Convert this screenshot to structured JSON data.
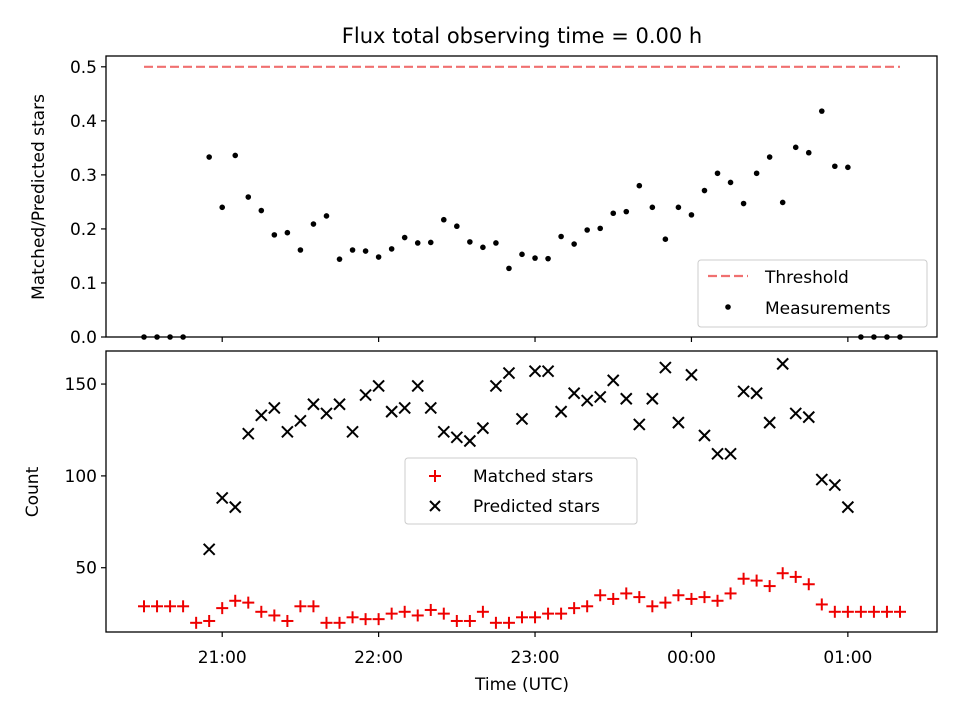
{
  "chart_data": [
    {
      "type": "scatter",
      "title": "Flux total observing time = 0.00 h",
      "xlabel": "",
      "ylabel": "Matched/Predicted stars",
      "ylim": [
        0,
        0.52
      ],
      "yticks": [
        "0.0",
        "0.1",
        "0.2",
        "0.3",
        "0.4",
        "0.5"
      ],
      "legend_position": "bottom-right",
      "threshold": {
        "name": "Threshold",
        "value": 0.5,
        "color": "#f07070",
        "x_range": [
          "20:30",
          "01:20"
        ]
      },
      "series": [
        {
          "name": "Measurements",
          "color": "#000000",
          "marker": "dot",
          "x": [
            "20:30",
            "20:35",
            "20:40",
            "20:45",
            "20:55",
            "21:00",
            "21:05",
            "21:10",
            "21:15",
            "21:20",
            "21:25",
            "21:30",
            "21:35",
            "21:40",
            "21:45",
            "21:50",
            "21:55",
            "22:00",
            "22:05",
            "22:10",
            "22:15",
            "22:20",
            "22:25",
            "22:30",
            "22:35",
            "22:40",
            "22:45",
            "22:50",
            "22:55",
            "23:00",
            "23:05",
            "23:10",
            "23:15",
            "23:20",
            "23:25",
            "23:30",
            "23:35",
            "23:40",
            "23:45",
            "23:50",
            "23:55",
            "00:00",
            "00:05",
            "00:10",
            "00:15",
            "00:20",
            "00:25",
            "00:30",
            "00:35",
            "00:40",
            "00:45",
            "00:50",
            "00:55",
            "01:00",
            "01:05",
            "01:10",
            "01:15",
            "01:20"
          ],
          "y": [
            0.0,
            0.0,
            0.0,
            0.0,
            0.333,
            0.24,
            0.336,
            0.259,
            0.234,
            0.189,
            0.193,
            0.161,
            0.209,
            0.224,
            0.144,
            0.161,
            0.159,
            0.148,
            0.163,
            0.184,
            0.174,
            0.175,
            0.217,
            0.205,
            0.176,
            0.166,
            0.174,
            0.127,
            0.153,
            0.146,
            0.145,
            0.186,
            0.172,
            0.198,
            0.201,
            0.229,
            0.232,
            0.28,
            0.24,
            0.181,
            0.24,
            0.226,
            0.271,
            0.303,
            0.286,
            0.247,
            0.303,
            0.333,
            0.249,
            0.351,
            0.341,
            0.418,
            0.316,
            0.314,
            0.0,
            0.0,
            0.0,
            0.0
          ]
        }
      ],
      "xlim": [
        "20:30",
        "01:20"
      ]
    },
    {
      "type": "scatter",
      "title": "",
      "xlabel": "Time (UTC)",
      "ylabel": "Count",
      "ylim": [
        15,
        168
      ],
      "yticks": [
        "50",
        "100",
        "150"
      ],
      "xticks": [
        "21:00",
        "22:00",
        "23:00",
        "00:00",
        "01:00"
      ],
      "legend_position": "center",
      "series": [
        {
          "name": "Matched stars",
          "color": "#ee0000",
          "marker": "plus",
          "x": [
            "20:30",
            "20:35",
            "20:40",
            "20:45",
            "20:50",
            "20:55",
            "21:00",
            "21:05",
            "21:10",
            "21:15",
            "21:20",
            "21:25",
            "21:30",
            "21:35",
            "21:40",
            "21:45",
            "21:50",
            "21:55",
            "22:00",
            "22:05",
            "22:10",
            "22:15",
            "22:20",
            "22:25",
            "22:30",
            "22:35",
            "22:40",
            "22:45",
            "22:50",
            "22:55",
            "23:00",
            "23:05",
            "23:10",
            "23:15",
            "23:20",
            "23:25",
            "23:30",
            "23:35",
            "23:40",
            "23:45",
            "23:50",
            "23:55",
            "00:00",
            "00:05",
            "00:10",
            "00:15",
            "00:20",
            "00:25",
            "00:30",
            "00:35",
            "00:40",
            "00:45",
            "00:50",
            "00:55",
            "01:00",
            "01:05",
            "01:10",
            "01:15",
            "01:20"
          ],
          "y": [
            29,
            29,
            29,
            29,
            20,
            21,
            28,
            32,
            31,
            26,
            24,
            21,
            29,
            29,
            20,
            20,
            23,
            22,
            22,
            25,
            26,
            24,
            27,
            25,
            21,
            21,
            26,
            20,
            20,
            23,
            23,
            25,
            25,
            28,
            29,
            35,
            33,
            36,
            34,
            29,
            31,
            35,
            33,
            34,
            32,
            36,
            44,
            43,
            40,
            47,
            45,
            41,
            30,
            26,
            26,
            26,
            26,
            26,
            26
          ]
        },
        {
          "name": "Predicted stars",
          "color": "#000000",
          "marker": "x",
          "x": [
            "20:55",
            "21:00",
            "21:05",
            "21:10",
            "21:15",
            "21:20",
            "21:25",
            "21:30",
            "21:35",
            "21:40",
            "21:45",
            "21:50",
            "21:55",
            "22:00",
            "22:05",
            "22:10",
            "22:15",
            "22:20",
            "22:25",
            "22:30",
            "22:35",
            "22:40",
            "22:45",
            "22:50",
            "22:55",
            "23:00",
            "23:05",
            "23:10",
            "23:15",
            "23:20",
            "23:25",
            "23:30",
            "23:35",
            "23:40",
            "23:45",
            "23:50",
            "23:55",
            "00:00",
            "00:05",
            "00:10",
            "00:15",
            "00:20",
            "00:25",
            "00:30",
            "00:35",
            "00:40",
            "00:45",
            "00:50",
            "00:55",
            "01:00"
          ],
          "y": [
            60,
            88,
            83,
            123,
            133,
            137,
            124,
            130,
            139,
            134,
            139,
            124,
            144,
            149,
            135,
            137,
            149,
            137,
            124,
            121,
            119,
            126,
            149,
            156,
            131,
            157,
            157,
            135,
            145,
            141,
            143,
            152,
            142,
            128,
            142,
            159,
            129,
            155,
            122,
            112,
            112,
            146,
            145,
            129,
            161,
            134,
            132,
            98,
            95,
            83
          ]
        }
      ],
      "xlim": [
        "20:30",
        "01:20"
      ]
    }
  ]
}
